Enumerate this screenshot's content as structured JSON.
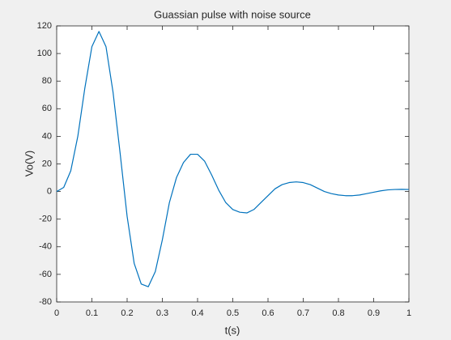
{
  "chart_data": {
    "type": "line",
    "title": "Guassian pulse with noise source",
    "x_label": "t(s)",
    "y_label": "Vo(V)",
    "x": [
      0,
      0.02,
      0.04,
      0.06,
      0.08,
      0.1,
      0.12,
      0.14,
      0.16,
      0.18,
      0.2,
      0.22,
      0.24,
      0.26,
      0.28,
      0.3,
      0.32,
      0.34,
      0.36,
      0.38,
      0.4,
      0.42,
      0.44,
      0.46,
      0.48,
      0.5,
      0.52,
      0.54,
      0.56,
      0.58,
      0.6,
      0.62,
      0.64,
      0.66,
      0.68,
      0.7,
      0.72,
      0.74,
      0.76,
      0.78,
      0.8,
      0.82,
      0.84,
      0.86,
      0.88,
      0.9,
      0.92,
      0.94,
      0.96,
      0.98,
      1
    ],
    "values": [
      0,
      3,
      15,
      40,
      75,
      105,
      116,
      105,
      72,
      28,
      -18,
      -52,
      -67,
      -69,
      -58,
      -35,
      -8,
      10,
      21,
      27,
      27,
      22,
      12,
      1,
      -8,
      -13,
      -15,
      -15.5,
      -13,
      -8,
      -3,
      2,
      5,
      6.5,
      7,
      6.5,
      5,
      2.5,
      0,
      -1.5,
      -2.5,
      -3,
      -3,
      -2.5,
      -1.5,
      -0.5,
      0.5,
      1.2,
      1.5,
      1.6,
      1.5
    ],
    "color": "#0072bd",
    "xlim": [
      0,
      1
    ],
    "ylim": [
      -80,
      120
    ],
    "xticks": [
      0,
      0.1,
      0.2,
      0.3,
      0.4,
      0.5,
      0.6,
      0.7,
      0.8,
      0.9,
      1
    ],
    "yticks": [
      -80,
      -60,
      -40,
      -20,
      0,
      20,
      40,
      60,
      80,
      100,
      120
    ]
  }
}
